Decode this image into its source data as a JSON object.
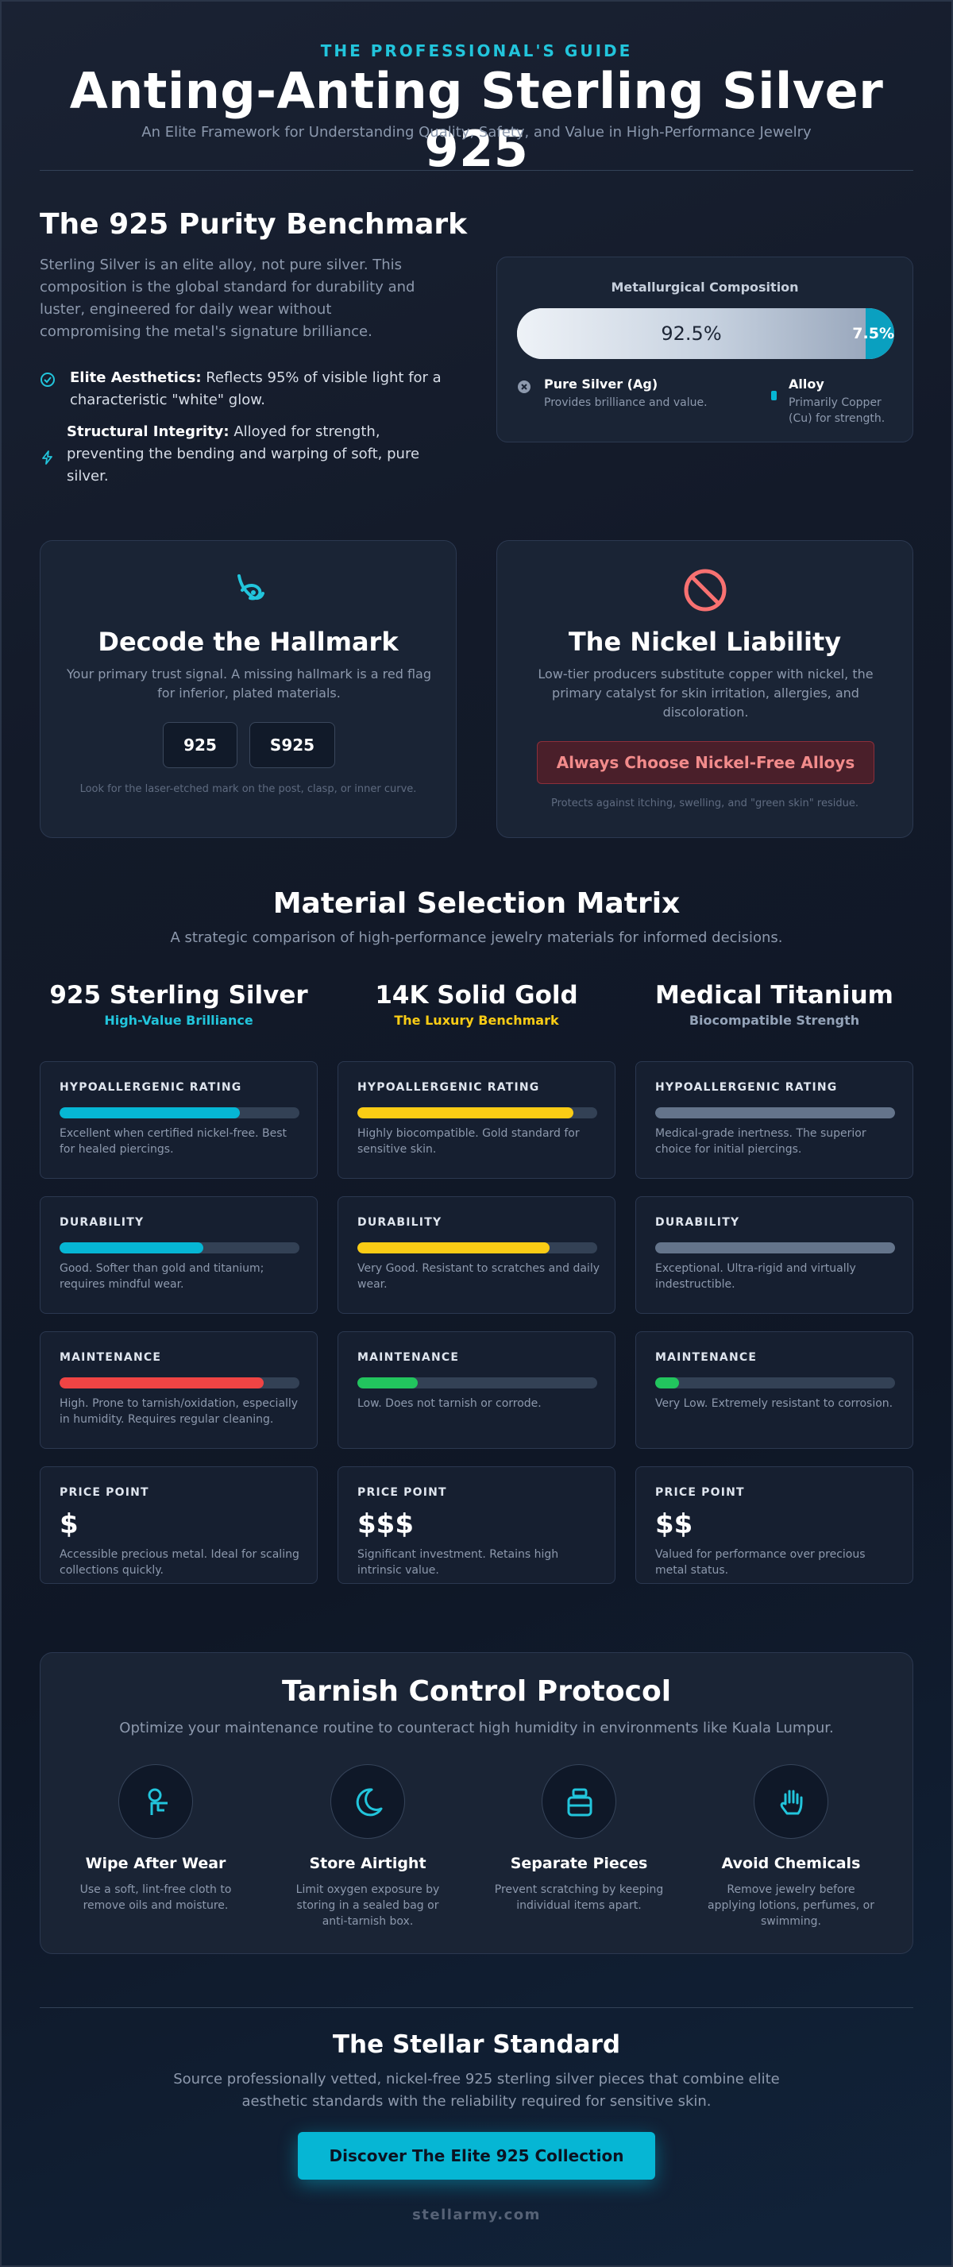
{
  "header": {
    "eyebrow": "THE PROFESSIONAL'S GUIDE",
    "title": "Anting-Anting Sterling Silver 925",
    "subtitle": "An Elite Framework for Understanding Quality, Safety, and Value in High-Performance Jewelry"
  },
  "purity": {
    "title": "The 925 Purity Benchmark",
    "intro": "Sterling Silver is an elite alloy, not pure silver. This composition is the global standard for durability and luster, engineered for daily wear without compromising the metal's signature brilliance.",
    "features": [
      {
        "icon": "check-circle-icon",
        "label": "Elite Aesthetics:",
        "text": " Reflects 95% of visible light for a characteristic \"white\" glow."
      },
      {
        "icon": "lightning-icon",
        "label": "Structural Integrity:",
        "text": " Alloyed for strength, preventing the bending and warping of soft, pure silver."
      }
    ],
    "composition": {
      "title": "Metallurgical Composition",
      "silver_value": "92.5%",
      "silver_fraction": 0.925,
      "alloy_value": "7.5%",
      "silver_label": "Pure Silver (Ag)",
      "silver_desc": "Provides brilliance and value.",
      "alloy_label": "Alloy",
      "alloy_desc": "Primarily Copper (Cu) for strength.",
      "colors": {
        "silver": "#c7d2e0",
        "alloy": "#0aa0c0"
      }
    }
  },
  "hallmark": {
    "icon": "hallmark-icon",
    "title": "Decode the Hallmark",
    "desc": "Your primary trust signal. A missing hallmark is a red flag for inferior, plated materials.",
    "stamps": [
      "925",
      "S925"
    ],
    "note": "Look for the laser-etched mark on the post, clasp, or inner curve."
  },
  "nickel": {
    "icon": "prohibited-icon",
    "title": "The Nickel Liability",
    "desc": "Low-tier producers substitute copper with nickel, the primary catalyst for skin irritation, allergies, and discoloration.",
    "button": "Always Choose Nickel-Free Alloys",
    "note": "Protects against itching, swelling, and \"green skin\" residue."
  },
  "matrix": {
    "title": "Material Selection Matrix",
    "subtitle": "A strategic comparison of high-performance jewelry materials for informed decisions.",
    "materials": [
      {
        "name": "925 Sterling Silver",
        "tagline": "High-Value Brilliance",
        "accent": "#22c5dc",
        "rows": [
          {
            "label": "HYPOALLERGENIC RATING",
            "level": 0.75,
            "color": "#06b6d4",
            "desc": "Excellent when certified nickel-free. Best for healed piercings."
          },
          {
            "label": "DURABILITY",
            "level": 0.6,
            "color": "#06b6d4",
            "desc": "Good. Softer than gold and titanium; requires mindful wear."
          },
          {
            "label": "MAINTENANCE",
            "level": 0.85,
            "color": "#ef4444",
            "desc": "High. Prone to tarnish/oxidation, especially in humidity. Requires regular cleaning."
          },
          {
            "label": "PRICE POINT",
            "price": "$",
            "desc": "Accessible precious metal. Ideal for scaling collections quickly."
          }
        ]
      },
      {
        "name": "14K Solid Gold",
        "tagline": "The Luxury Benchmark",
        "accent": "#facc15",
        "rows": [
          {
            "label": "HYPOALLERGENIC RATING",
            "level": 0.9,
            "color": "#facc15",
            "desc": "Highly biocompatible. Gold standard for sensitive skin."
          },
          {
            "label": "DURABILITY",
            "level": 0.8,
            "color": "#facc15",
            "desc": "Very Good. Resistant to scratches and daily wear."
          },
          {
            "label": "MAINTENANCE",
            "level": 0.25,
            "color": "#22c55e",
            "desc": "Low. Does not tarnish or corrode."
          },
          {
            "label": "PRICE POINT",
            "price": "$$$",
            "desc": "Significant investment. Retains high intrinsic value."
          }
        ]
      },
      {
        "name": "Medical Titanium",
        "tagline": "Biocompatible Strength",
        "accent": "#94a3b8",
        "rows": [
          {
            "label": "HYPOALLERGENIC RATING",
            "level": 1.0,
            "color": "#64748b",
            "desc": "Medical-grade inertness. The superior choice for initial piercings."
          },
          {
            "label": "DURABILITY",
            "level": 1.0,
            "color": "#64748b",
            "desc": "Exceptional. Ultra-rigid and virtually indestructible."
          },
          {
            "label": "MAINTENANCE",
            "level": 0.1,
            "color": "#22c55e",
            "desc": "Very Low. Extremely resistant to corrosion."
          },
          {
            "label": "PRICE POINT",
            "price": "$$",
            "desc": "Valued for performance over precious metal status."
          }
        ]
      }
    ]
  },
  "tarnish": {
    "title": "Tarnish Control Protocol",
    "subtitle": "Optimize your maintenance routine to counteract high humidity in environments like Kuala Lumpur.",
    "steps": [
      {
        "icon": "wipe-hand-icon",
        "title": "Wipe After Wear",
        "desc": "Use a soft, lint-free cloth to remove oils and moisture."
      },
      {
        "icon": "moon-icon",
        "title": "Store Airtight",
        "desc": "Limit oxygen exposure by storing in a sealed bag or anti-tarnish box."
      },
      {
        "icon": "jar-icon",
        "title": "Separate Pieces",
        "desc": "Prevent scratching by keeping individual items apart."
      },
      {
        "icon": "raised-hand-icon",
        "title": "Avoid Chemicals",
        "desc": "Remove jewelry before applying lotions, perfumes, or swimming."
      }
    ]
  },
  "footer": {
    "title": "The Stellar Standard",
    "text": "Source professionally vetted, nickel-free 925 sterling silver pieces that combine elite aesthetic standards with the reliability required for sensitive skin.",
    "cta": "Discover The Elite 925 Collection",
    "site": "stellarmy.com"
  }
}
